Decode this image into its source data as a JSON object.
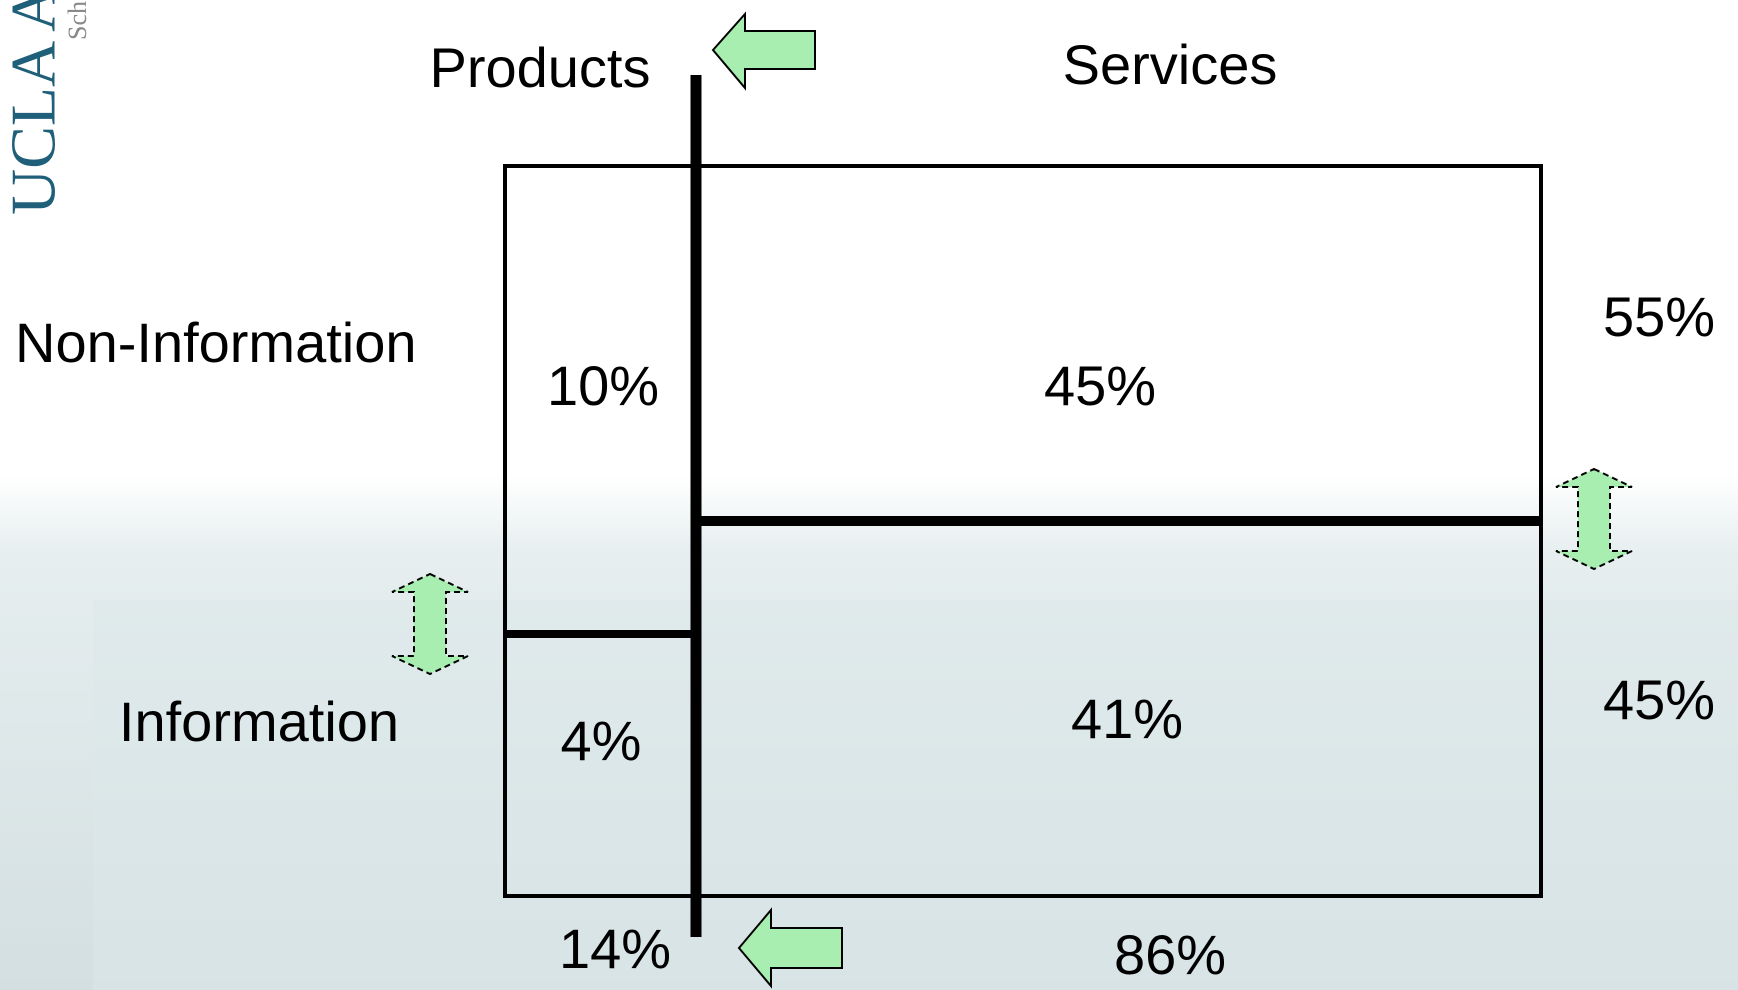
{
  "logo": {
    "title": "UCLA A",
    "subtitle": "Sch"
  },
  "column_labels": [
    "Products",
    "Services"
  ],
  "row_labels": [
    "Non-Information",
    "Information"
  ],
  "cells": [
    [
      "10%",
      "45%"
    ],
    [
      "4%",
      "41%"
    ]
  ],
  "row_totals": [
    "55%",
    "45%"
  ],
  "column_totals": [
    "14%",
    "86%"
  ]
}
